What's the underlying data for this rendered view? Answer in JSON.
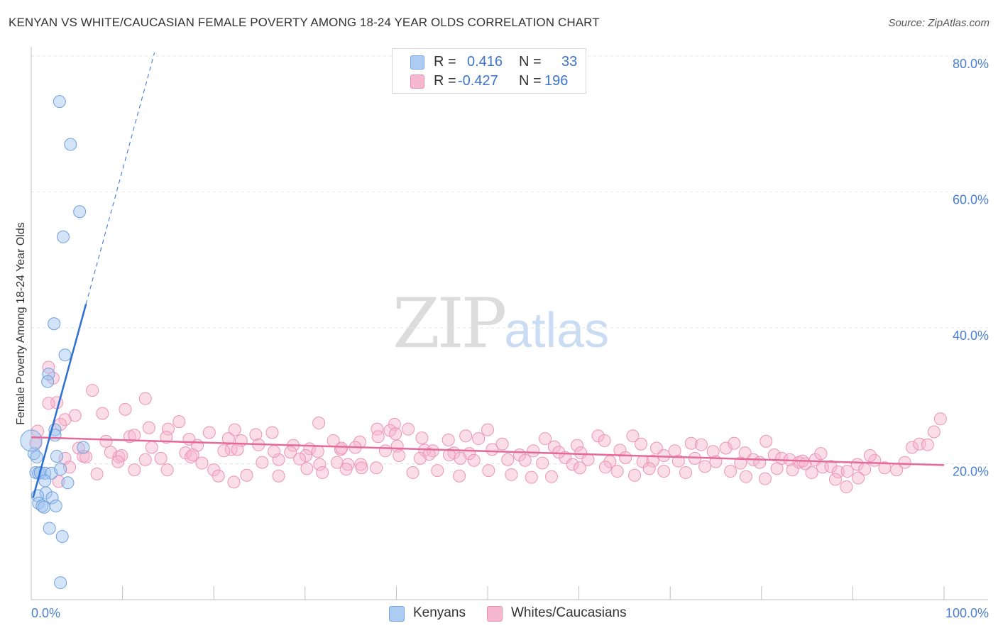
{
  "title": "KENYAN VS WHITE/CAUCASIAN FEMALE POVERTY AMONG 18-24 YEAR OLDS CORRELATION CHART",
  "source": "Source: ZipAtlas.com",
  "legend": {
    "rows": [
      {
        "r_label": "R =",
        "r_value": "0.416",
        "n_label": "N =",
        "n_value": "33",
        "fill": "#aecbf1",
        "stroke": "#7aa6e0"
      },
      {
        "r_label": "R =",
        "r_value": "-0.427",
        "n_label": "N =",
        "n_value": "196",
        "fill": "#f6b8cf",
        "stroke": "#eb8fb2"
      }
    ]
  },
  "bottom_legend": [
    {
      "label": "Kenyans",
      "fill": "#aecbf1",
      "stroke": "#7aa6e0"
    },
    {
      "label": "Whites/Caucasians",
      "fill": "#f6b8cf",
      "stroke": "#eb8fb2"
    }
  ],
  "watermark": {
    "zip": "ZIP",
    "atlas": "atlas"
  },
  "colors": {
    "kenyan_fill": "rgba(160,196,240,0.45)",
    "kenyan_stroke": "#6fa0df",
    "kenyan_line": "#2e6fd3",
    "white_fill": "rgba(246,180,205,0.45)",
    "white_stroke": "#ec93b6",
    "white_line": "#e36a99",
    "grid": "#e4e4e4",
    "tick_text": "#4a7fd4"
  },
  "chart_data": {
    "type": "scatter",
    "title": "KENYAN VS WHITE/CAUCASIAN FEMALE POVERTY AMONG 18-24 YEAR OLDS CORRELATION CHART",
    "xlabel": "",
    "ylabel": "Female Poverty Among 18-24 Year Olds",
    "xlim": [
      0,
      100
    ],
    "ylim": [
      0,
      82
    ],
    "x_tick_labels": [
      {
        "value": 0,
        "label": "0.0%"
      },
      {
        "value": 100,
        "label": "100.0%"
      }
    ],
    "y_ticks": [
      {
        "value": 20,
        "label": "20.0%"
      },
      {
        "value": 40,
        "label": "40.0%"
      },
      {
        "value": 60,
        "label": "60.0%"
      },
      {
        "value": 80,
        "label": "80.0%"
      }
    ],
    "grid": true,
    "legend_position": "top-center",
    "series": [
      {
        "name": "Kenyans",
        "r": 0.416,
        "n": 33,
        "trend": {
          "x0": 0.2,
          "y0": 15.0,
          "x1": 6.0,
          "y1": 43.5,
          "dashed_to_x": 13.5,
          "dashed_to_y": 80.5
        },
        "points": [
          [
            3.1,
            73.3
          ],
          [
            4.3,
            67.0
          ],
          [
            5.3,
            57.1
          ],
          [
            3.5,
            53.4
          ],
          [
            2.5,
            40.6
          ],
          [
            3.7,
            36.0
          ],
          [
            1.9,
            33.2
          ],
          [
            1.8,
            32.1
          ],
          [
            2.6,
            25.0
          ],
          [
            2.6,
            24.2
          ],
          [
            5.7,
            22.4
          ],
          [
            0.3,
            21.5
          ],
          [
            0.6,
            21.0
          ],
          [
            2.8,
            21.1
          ],
          [
            0.5,
            18.7
          ],
          [
            0.8,
            18.6
          ],
          [
            1.0,
            18.7
          ],
          [
            1.5,
            18.6
          ],
          [
            2.2,
            18.6
          ],
          [
            3.2,
            19.2
          ],
          [
            0.0,
            23.4
          ],
          [
            1.5,
            17.5
          ],
          [
            4.0,
            17.2
          ],
          [
            1.6,
            15.7
          ],
          [
            0.7,
            15.3
          ],
          [
            2.3,
            15.0
          ],
          [
            0.8,
            14.2
          ],
          [
            1.2,
            13.8
          ],
          [
            1.4,
            13.6
          ],
          [
            2.7,
            13.8
          ],
          [
            2.0,
            10.5
          ],
          [
            3.4,
            9.3
          ],
          [
            3.2,
            2.5
          ]
        ]
      },
      {
        "name": "Whites/Caucasians",
        "r": -0.427,
        "n": 196,
        "trend": {
          "x0": 0,
          "y0": 23.9,
          "x1": 100,
          "y1": 19.8
        },
        "points": [
          [
            1.9,
            34.2
          ],
          [
            2.4,
            32.6
          ],
          [
            6.7,
            30.8
          ],
          [
            12.5,
            29.6
          ],
          [
            2.8,
            29.0
          ],
          [
            1.9,
            28.9
          ],
          [
            10.3,
            28.0
          ],
          [
            4.8,
            27.1
          ],
          [
            7.8,
            27.4
          ],
          [
            3.7,
            26.5
          ],
          [
            3.2,
            25.8
          ],
          [
            16.2,
            26.2
          ],
          [
            12.9,
            25.3
          ],
          [
            15.0,
            25.1
          ],
          [
            19.5,
            24.6
          ],
          [
            22.3,
            25.0
          ],
          [
            24.6,
            24.3
          ],
          [
            26.4,
            24.6
          ],
          [
            10.8,
            24.0
          ],
          [
            11.3,
            24.2
          ],
          [
            14.8,
            23.9
          ],
          [
            17.3,
            23.6
          ],
          [
            21.6,
            23.7
          ],
          [
            8.2,
            23.3
          ],
          [
            23.0,
            23.4
          ],
          [
            0.5,
            23.0
          ],
          [
            5.2,
            22.3
          ],
          [
            8.7,
            21.7
          ],
          [
            13.2,
            22.4
          ],
          [
            18.2,
            22.7
          ],
          [
            21.9,
            22.1
          ],
          [
            9.6,
            21.0
          ],
          [
            9.9,
            21.2
          ],
          [
            16.9,
            21.6
          ],
          [
            17.5,
            21.0
          ],
          [
            21.1,
            21.9
          ],
          [
            22.6,
            22.1
          ],
          [
            3.7,
            20.8
          ],
          [
            5.7,
            21.1
          ],
          [
            14.2,
            20.8
          ],
          [
            18.7,
            20.1
          ],
          [
            20.0,
            19.1
          ],
          [
            25.3,
            20.2
          ],
          [
            27.1,
            20.6
          ],
          [
            9.5,
            20.3
          ],
          [
            4.2,
            19.5
          ],
          [
            7.2,
            18.5
          ],
          [
            11.3,
            19.1
          ],
          [
            14.9,
            19.1
          ],
          [
            20.5,
            18.2
          ],
          [
            22.2,
            17.3
          ],
          [
            23.6,
            18.3
          ],
          [
            3.0,
            17.4
          ],
          [
            0.7,
            24.8
          ],
          [
            6.0,
            21.0
          ],
          [
            12.5,
            20.6
          ],
          [
            17.7,
            21.3
          ],
          [
            28.7,
            22.7
          ],
          [
            30.5,
            22.2
          ],
          [
            33.1,
            23.4
          ],
          [
            36.0,
            23.2
          ],
          [
            37.9,
            25.1
          ],
          [
            39.8,
            25.8
          ],
          [
            41.3,
            25.1
          ],
          [
            42.8,
            23.8
          ],
          [
            45.7,
            23.5
          ],
          [
            47.6,
            24.1
          ],
          [
            49.0,
            23.7
          ],
          [
            30.1,
            21.2
          ],
          [
            31.4,
            21.8
          ],
          [
            33.9,
            22.1
          ],
          [
            35.5,
            22.4
          ],
          [
            38.8,
            21.9
          ],
          [
            40.1,
            22.6
          ],
          [
            43.1,
            22.0
          ],
          [
            44.0,
            21.9
          ],
          [
            46.3,
            21.6
          ],
          [
            48.0,
            21.5
          ],
          [
            28.4,
            21.7
          ],
          [
            29.4,
            20.7
          ],
          [
            31.6,
            19.9
          ],
          [
            33.5,
            20.2
          ],
          [
            34.7,
            19.9
          ],
          [
            36.1,
            19.9
          ],
          [
            37.8,
            19.4
          ],
          [
            40.3,
            21.2
          ],
          [
            42.6,
            20.8
          ],
          [
            45.8,
            21.3
          ],
          [
            47.0,
            20.8
          ],
          [
            48.5,
            20.5
          ],
          [
            31.9,
            18.7
          ],
          [
            34.5,
            19.2
          ],
          [
            36.2,
            19.4
          ],
          [
            41.8,
            18.7
          ],
          [
            44.5,
            19.0
          ],
          [
            46.9,
            18.2
          ],
          [
            24.9,
            22.8
          ],
          [
            26.6,
            21.8
          ],
          [
            27.1,
            18.2
          ],
          [
            30.2,
            19.3
          ],
          [
            31.5,
            26.0
          ],
          [
            34.0,
            22.3
          ],
          [
            38.0,
            24.0
          ],
          [
            39.3,
            24.9
          ],
          [
            39.9,
            24.4
          ],
          [
            43.6,
            21.4
          ],
          [
            50.0,
            25.0
          ],
          [
            50.5,
            22.1
          ],
          [
            51.6,
            22.9
          ],
          [
            53.5,
            21.3
          ],
          [
            55.0,
            21.9
          ],
          [
            56.3,
            23.7
          ],
          [
            57.3,
            22.5
          ],
          [
            58.5,
            20.9
          ],
          [
            59.8,
            22.7
          ],
          [
            60.2,
            21.6
          ],
          [
            62.1,
            24.1
          ],
          [
            62.8,
            23.4
          ],
          [
            64.5,
            22.0
          ],
          [
            65.9,
            24.1
          ],
          [
            66.8,
            22.9
          ],
          [
            68.5,
            22.3
          ],
          [
            69.3,
            21.2
          ],
          [
            70.5,
            21.9
          ],
          [
            72.3,
            23.0
          ],
          [
            73.4,
            22.8
          ],
          [
            74.7,
            21.8
          ],
          [
            76.1,
            22.3
          ],
          [
            77.0,
            23.0
          ],
          [
            78.2,
            21.6
          ],
          [
            79.1,
            20.6
          ],
          [
            80.5,
            23.3
          ],
          [
            81.4,
            21.3
          ],
          [
            82.2,
            20.8
          ],
          [
            83.1,
            20.6
          ],
          [
            84.1,
            20.2
          ],
          [
            52.2,
            20.6
          ],
          [
            54.1,
            20.5
          ],
          [
            56.0,
            20.1
          ],
          [
            57.8,
            21.7
          ],
          [
            59.3,
            19.9
          ],
          [
            61.0,
            20.6
          ],
          [
            63.4,
            20.3
          ],
          [
            65.1,
            20.9
          ],
          [
            67.0,
            20.3
          ],
          [
            68.1,
            20.4
          ],
          [
            70.9,
            20.4
          ],
          [
            72.7,
            20.8
          ],
          [
            75.0,
            20.3
          ],
          [
            77.7,
            20.1
          ],
          [
            79.8,
            20.2
          ],
          [
            81.7,
            19.3
          ],
          [
            84.8,
            20.0
          ],
          [
            85.9,
            20.6
          ],
          [
            50.1,
            19.0
          ],
          [
            52.6,
            18.4
          ],
          [
            54.8,
            18.0
          ],
          [
            57.0,
            18.1
          ],
          [
            60.1,
            19.4
          ],
          [
            62.9,
            19.5
          ],
          [
            64.2,
            18.9
          ],
          [
            66.1,
            18.3
          ],
          [
            67.7,
            19.3
          ],
          [
            69.3,
            18.9
          ],
          [
            71.7,
            18.7
          ],
          [
            73.8,
            19.6
          ],
          [
            76.6,
            18.9
          ],
          [
            78.3,
            18.1
          ],
          [
            80.4,
            17.8
          ],
          [
            83.4,
            19.1
          ],
          [
            85.5,
            18.7
          ],
          [
            86.7,
            19.5
          ],
          [
            87.6,
            19.6
          ],
          [
            88.4,
            18.8
          ],
          [
            89.4,
            18.9
          ],
          [
            90.5,
            19.9
          ],
          [
            91.3,
            19.2
          ],
          [
            92.4,
            20.5
          ],
          [
            93.5,
            19.4
          ],
          [
            94.8,
            19.1
          ],
          [
            95.7,
            20.2
          ],
          [
            96.5,
            22.4
          ],
          [
            97.3,
            22.9
          ],
          [
            98.2,
            22.8
          ],
          [
            98.9,
            24.7
          ],
          [
            99.6,
            26.6
          ],
          [
            88.1,
            17.7
          ],
          [
            89.3,
            16.6
          ],
          [
            90.6,
            17.9
          ],
          [
            86.5,
            21.5
          ],
          [
            84.5,
            20.4
          ],
          [
            91.9,
            21.2
          ]
        ]
      }
    ]
  }
}
